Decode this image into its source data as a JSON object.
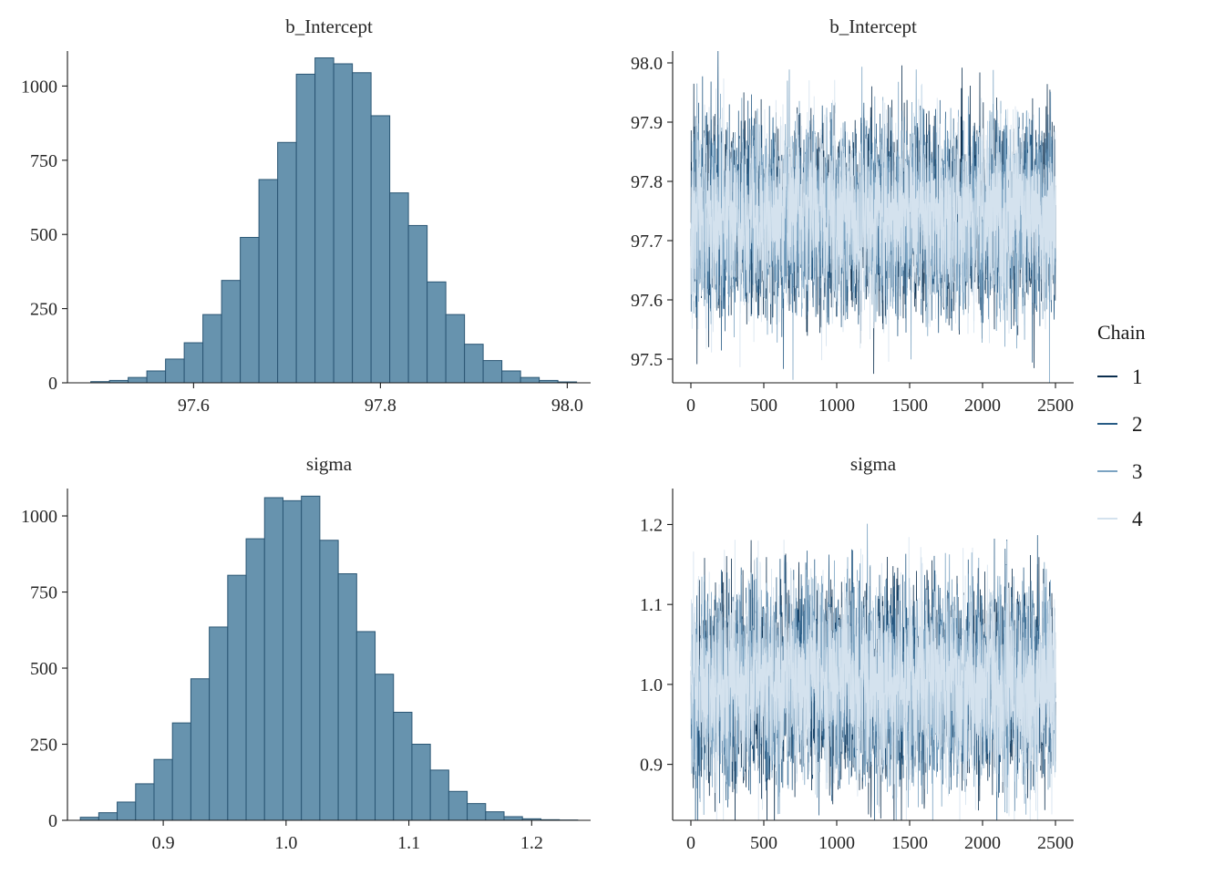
{
  "legend": {
    "title": "Chain",
    "entries": [
      {
        "label": "1",
        "color": "#0b2e4e"
      },
      {
        "label": "2",
        "color": "#275b85"
      },
      {
        "label": "3",
        "color": "#7ba3c2"
      },
      {
        "label": "4",
        "color": "#d4e2ee"
      }
    ]
  },
  "style": {
    "bar_fill": "#6793ae",
    "bar_stroke": "#2a5674",
    "axis_color": "#1a1a1a",
    "text_color": "#262626",
    "background": "#ffffff"
  },
  "chart_data": [
    {
      "id": "hist-b-intercept",
      "type": "bar",
      "title": "b_Intercept",
      "xlabel": "",
      "ylabel": "",
      "bin_start": 97.49,
      "bin_width": 0.02,
      "values": [
        4,
        8,
        18,
        40,
        80,
        135,
        230,
        345,
        490,
        685,
        810,
        1040,
        1095,
        1075,
        1045,
        900,
        640,
        530,
        340,
        230,
        130,
        75,
        40,
        18,
        8,
        3
      ],
      "xlim": [
        97.465,
        98.025
      ],
      "ylim": [
        0,
        1118
      ],
      "xticks": [
        97.6,
        97.8,
        98.0
      ],
      "xtick_labels": [
        "97.6",
        "97.8",
        "98.0"
      ],
      "yticks": [
        0,
        250,
        500,
        750,
        1000
      ],
      "ytick_labels": [
        "0",
        "250",
        "500",
        "750",
        "1000"
      ],
      "grid": false
    },
    {
      "id": "trace-b-intercept",
      "type": "line",
      "title": "b_Intercept",
      "xlabel": "",
      "ylabel": "",
      "n_iterations": 2500,
      "n_chains": 4,
      "mean": 97.74,
      "sd": 0.075,
      "xlim": [
        -125,
        2625
      ],
      "ylim": [
        97.46,
        98.02
      ],
      "xticks": [
        0,
        500,
        1000,
        1500,
        2000,
        2500
      ],
      "xtick_labels": [
        "0",
        "500",
        "1000",
        "1500",
        "2000",
        "2500"
      ],
      "yticks": [
        97.5,
        97.6,
        97.7,
        97.8,
        97.9,
        98.0
      ],
      "ytick_labels": [
        "97.5",
        "97.6",
        "97.7",
        "97.8",
        "97.9",
        "98.0"
      ],
      "grid": false
    },
    {
      "id": "hist-sigma",
      "type": "bar",
      "title": "sigma",
      "xlabel": "",
      "ylabel": "",
      "bin_start": 0.8325,
      "bin_width": 0.015,
      "values": [
        10,
        25,
        60,
        120,
        200,
        320,
        465,
        635,
        805,
        925,
        1060,
        1050,
        1065,
        920,
        810,
        620,
        480,
        355,
        250,
        165,
        95,
        55,
        28,
        12,
        5,
        2,
        1
      ],
      "xlim": [
        0.822,
        1.248
      ],
      "ylim": [
        0,
        1090
      ],
      "xticks": [
        0.9,
        1.0,
        1.1,
        1.2
      ],
      "xtick_labels": [
        "0.9",
        "1.0",
        "1.1",
        "1.2"
      ],
      "yticks": [
        0,
        250,
        500,
        750,
        1000
      ],
      "ytick_labels": [
        "0",
        "250",
        "500",
        "750",
        "1000"
      ],
      "grid": false
    },
    {
      "id": "trace-sigma",
      "type": "line",
      "title": "sigma",
      "xlabel": "",
      "ylabel": "",
      "n_iterations": 2500,
      "n_chains": 4,
      "mean": 1.002,
      "sd": 0.058,
      "xlim": [
        -125,
        2625
      ],
      "ylim": [
        0.83,
        1.245
      ],
      "xticks": [
        0,
        500,
        1000,
        1500,
        2000,
        2500
      ],
      "xtick_labels": [
        "0",
        "500",
        "1000",
        "1500",
        "2000",
        "2500"
      ],
      "yticks": [
        0.9,
        1.0,
        1.1,
        1.2
      ],
      "ytick_labels": [
        "0.9",
        "1.0",
        "1.1",
        "1.2"
      ],
      "grid": false
    }
  ]
}
